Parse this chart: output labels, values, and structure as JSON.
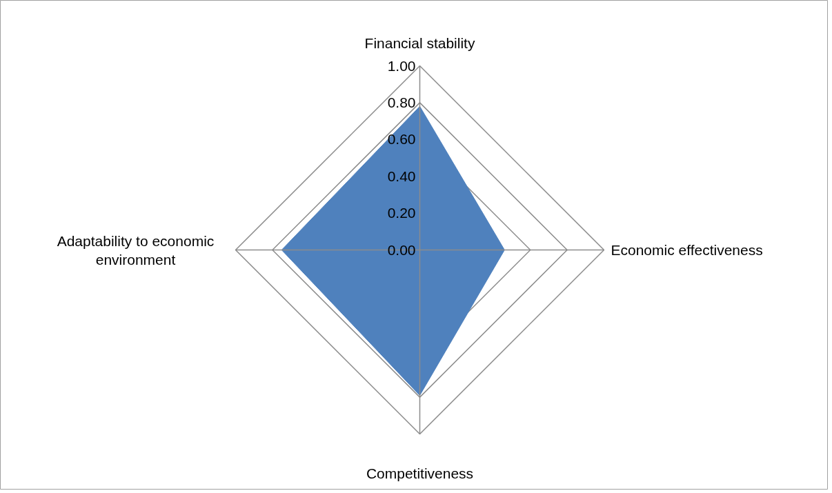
{
  "chart_data": {
    "type": "radar",
    "categories": [
      "Financial stability",
      "Economic effectiveness",
      "Competitiveness",
      "Adaptability to economic environment"
    ],
    "series": [
      {
        "color": "#4f81bd",
        "values": [
          0.78,
          0.46,
          0.79,
          0.75
        ]
      }
    ],
    "ylim": [
      0,
      1
    ],
    "yticks": [
      {
        "value": 0,
        "label": "0.00"
      },
      {
        "value": 0.2,
        "label": "0.20"
      },
      {
        "value": 0.4,
        "label": "0.40"
      },
      {
        "value": 0.6,
        "label": "0.60"
      },
      {
        "value": 0.8,
        "label": "0.80"
      },
      {
        "value": 1,
        "label": "1.00"
      }
    ],
    "grid": true
  }
}
